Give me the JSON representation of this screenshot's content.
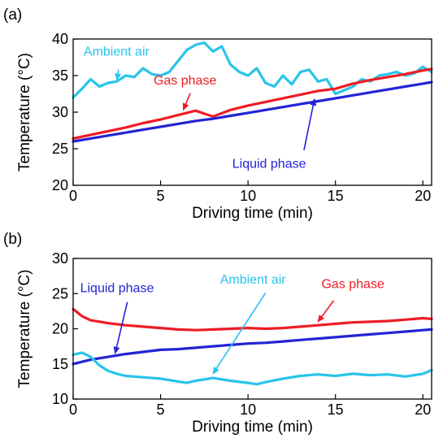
{
  "chart_data": [
    {
      "panel": "(a)",
      "type": "line",
      "xlabel": "Driving time (min)",
      "ylabel": "Temperature (°C)",
      "xlim": [
        0,
        20.5
      ],
      "ylim": [
        20,
        40
      ],
      "xticks": [
        0,
        5,
        10,
        15,
        20
      ],
      "yticks": [
        20,
        25,
        30,
        35,
        40
      ],
      "series": [
        {
          "name": "Ambient air",
          "color": "#29c4ea",
          "x": [
            0,
            0.5,
            1,
            1.5,
            2,
            2.5,
            3,
            3.5,
            4,
            4.5,
            5,
            5.5,
            6,
            6.5,
            7,
            7.5,
            8,
            8.5,
            9,
            9.5,
            10,
            10.5,
            11,
            11.5,
            12,
            12.5,
            13,
            13.5,
            14,
            14.5,
            15,
            15.5,
            16,
            16.5,
            17,
            17.5,
            18,
            18.5,
            19,
            19.5,
            20,
            20.5
          ],
          "values": [
            32.0,
            33.2,
            34.5,
            33.5,
            34.0,
            34.2,
            35.0,
            34.8,
            36.0,
            35.2,
            35.0,
            35.5,
            37.0,
            38.5,
            39.2,
            39.5,
            38.3,
            39.0,
            36.5,
            35.5,
            35.0,
            36.0,
            34.0,
            33.5,
            35.0,
            33.8,
            35.5,
            35.8,
            34.2,
            34.5,
            32.5,
            33.0,
            33.5,
            34.5,
            34.2,
            35.0,
            35.2,
            35.5,
            35.0,
            35.3,
            36.2,
            35.5
          ]
        },
        {
          "name": "Gas phase",
          "color": "#ee1c25",
          "x": [
            0,
            1,
            2,
            3,
            4,
            5,
            6,
            7,
            8,
            9,
            10,
            11,
            12,
            13,
            14,
            15,
            16,
            17,
            18,
            19,
            20,
            20.5
          ],
          "values": [
            26.4,
            26.9,
            27.4,
            27.9,
            28.5,
            29.0,
            29.6,
            30.2,
            29.4,
            30.3,
            30.9,
            31.4,
            31.9,
            32.4,
            32.9,
            33.2,
            33.9,
            34.4,
            34.8,
            35.2,
            35.7,
            35.9
          ]
        },
        {
          "name": "Liquid phase",
          "color": "#2323d6",
          "x": [
            0,
            1,
            2,
            3,
            4,
            5,
            6,
            7,
            8,
            9,
            10,
            11,
            12,
            13,
            14,
            15,
            16,
            17,
            18,
            19,
            20,
            20.5
          ],
          "values": [
            26.0,
            26.4,
            26.8,
            27.2,
            27.6,
            28.0,
            28.4,
            28.8,
            29.1,
            29.5,
            29.9,
            30.3,
            30.7,
            31.1,
            31.5,
            31.9,
            32.3,
            32.7,
            33.1,
            33.5,
            33.9,
            34.1
          ]
        }
      ],
      "annotations": [
        {
          "text": "Ambient air",
          "color": "#29c4ea",
          "at": [
            0.6,
            37.7
          ],
          "arrow_from": [
            2.6,
            35.8
          ],
          "arrow_to": [
            2.5,
            34.4
          ]
        },
        {
          "text": "Gas phase",
          "color": "#ee1c25",
          "at": [
            4.6,
            33.8
          ],
          "arrow_from": [
            6.7,
            32.6
          ],
          "arrow_to": [
            6.3,
            30.3
          ]
        },
        {
          "text": "Liquid phase",
          "color": "#2323d6",
          "at": [
            9.1,
            22.4
          ],
          "arrow_from": [
            13.2,
            24.8
          ],
          "arrow_to": [
            13.8,
            31.8
          ]
        }
      ]
    },
    {
      "panel": "(b)",
      "type": "line",
      "xlabel": "Driving time (min)",
      "ylabel": "Temperature (°C)",
      "xlim": [
        0,
        20.5
      ],
      "ylim": [
        10,
        30
      ],
      "xticks": [
        0,
        5,
        10,
        15,
        20
      ],
      "yticks": [
        10,
        15,
        20,
        25,
        30
      ],
      "series": [
        {
          "name": "Gas phase",
          "color": "#ee1c25",
          "x": [
            0,
            0.5,
            1,
            2,
            3,
            4,
            5,
            6,
            7,
            8,
            9,
            10,
            11,
            12,
            13,
            14,
            15,
            16,
            17,
            18,
            19,
            20,
            20.5
          ],
          "values": [
            22.8,
            21.8,
            21.2,
            20.8,
            20.5,
            20.3,
            20.1,
            19.9,
            19.8,
            19.9,
            20.0,
            20.1,
            20.0,
            20.1,
            20.3,
            20.5,
            20.7,
            20.9,
            21.0,
            21.1,
            21.3,
            21.5,
            21.4
          ]
        },
        {
          "name": "Liquid phase",
          "color": "#2323d6",
          "x": [
            0,
            1,
            2,
            3,
            4,
            5,
            6,
            7,
            8,
            9,
            10,
            11,
            12,
            13,
            14,
            15,
            16,
            17,
            18,
            19,
            20,
            20.5
          ],
          "values": [
            15.0,
            15.6,
            16.0,
            16.4,
            16.7,
            17.0,
            17.1,
            17.3,
            17.5,
            17.7,
            17.9,
            18.0,
            18.2,
            18.4,
            18.6,
            18.8,
            19.0,
            19.2,
            19.4,
            19.6,
            19.8,
            19.9
          ]
        },
        {
          "name": "Ambient air",
          "color": "#29c4ea",
          "x": [
            0,
            0.5,
            1,
            1.5,
            2,
            2.5,
            3,
            4,
            5,
            6,
            6.5,
            7,
            8,
            9,
            10,
            10.5,
            11,
            12,
            13,
            14,
            15,
            16,
            17,
            18,
            19,
            20,
            20.5
          ],
          "values": [
            16.3,
            16.6,
            16.0,
            14.8,
            14.0,
            13.6,
            13.3,
            13.1,
            12.9,
            12.5,
            12.3,
            12.6,
            13.0,
            12.6,
            12.3,
            12.1,
            12.4,
            12.9,
            13.3,
            13.5,
            13.3,
            13.6,
            13.4,
            13.5,
            13.2,
            13.6,
            14.1
          ]
        }
      ],
      "annotations": [
        {
          "text": "Liquid phase",
          "color": "#2323d6",
          "at": [
            0.4,
            25.2
          ],
          "arrow_from": [
            3.1,
            23.8
          ],
          "arrow_to": [
            2.4,
            16.5
          ]
        },
        {
          "text": "Ambient air",
          "color": "#29c4ea",
          "at": [
            8.4,
            26.4
          ],
          "arrow_from": [
            11.0,
            25.1
          ],
          "arrow_to": [
            8.0,
            13.6
          ]
        },
        {
          "text": "Gas phase",
          "color": "#ee1c25",
          "at": [
            14.2,
            25.8
          ],
          "arrow_from": [
            14.9,
            24.0
          ],
          "arrow_to": [
            14.0,
            21.0
          ]
        }
      ]
    }
  ]
}
